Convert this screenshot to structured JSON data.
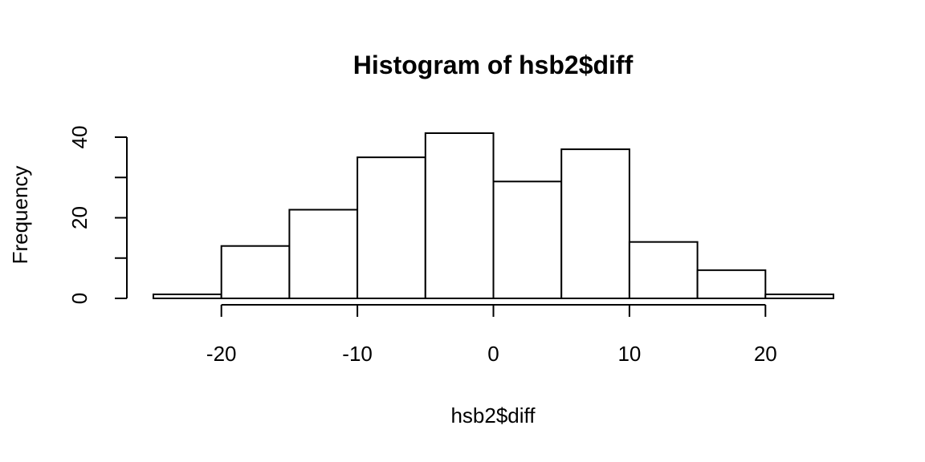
{
  "chart_data": {
    "type": "bar",
    "title": "Histogram of hsb2$diff",
    "xlabel": "hsb2$diff",
    "ylabel": "Frequency",
    "bins": [
      {
        "from": -25,
        "to": -20,
        "count": 1
      },
      {
        "from": -20,
        "to": -15,
        "count": 13
      },
      {
        "from": -15,
        "to": -10,
        "count": 22
      },
      {
        "from": -10,
        "to": -5,
        "count": 35
      },
      {
        "from": -5,
        "to": 0,
        "count": 41
      },
      {
        "from": 0,
        "to": 5,
        "count": 29
      },
      {
        "from": 5,
        "to": 10,
        "count": 37
      },
      {
        "from": 10,
        "to": 15,
        "count": 14
      },
      {
        "from": 15,
        "to": 20,
        "count": 7
      },
      {
        "from": 20,
        "to": 25,
        "count": 1
      }
    ],
    "xticks": [
      -20,
      -10,
      0,
      10,
      20
    ],
    "yticks": [
      0,
      10,
      20,
      30,
      40
    ],
    "ytick_labels": [
      "0",
      "",
      "20",
      "",
      "40"
    ],
    "xlim": [
      -25,
      25
    ],
    "ylim": [
      0,
      41
    ],
    "grid": false,
    "colors": {
      "bar_fill": "#ffffff",
      "bar_stroke": "#000000"
    }
  }
}
